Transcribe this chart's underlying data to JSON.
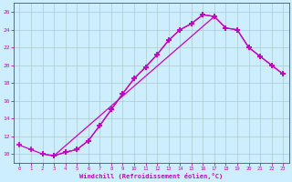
{
  "bg_color": "#cceeff",
  "line_color": "#cc00cc",
  "grid_color": "#aacccc",
  "marker": "+",
  "markersize": 4,
  "markeredgewidth": 1.2,
  "linewidth": 0.9,
  "xlim": [
    -0.5,
    23.5
  ],
  "ylim": [
    9.0,
    27.0
  ],
  "xticks": [
    0,
    1,
    2,
    3,
    4,
    5,
    6,
    7,
    8,
    9,
    10,
    11,
    12,
    13,
    14,
    15,
    16,
    17,
    18,
    19,
    20,
    21,
    22,
    23
  ],
  "yticks": [
    10,
    12,
    14,
    16,
    18,
    20,
    22,
    24,
    26
  ],
  "xlabel": "Windchill (Refroidissement éolien,°C)",
  "curve1_x": [
    0,
    1,
    2,
    3,
    4,
    5,
    6,
    7,
    8,
    9,
    10,
    11,
    12,
    13,
    14,
    15,
    16,
    17
  ],
  "curve1_y": [
    11.0,
    10.5,
    10.0,
    9.8,
    10.2,
    10.5,
    11.5,
    13.2,
    15.0,
    16.8,
    18.5,
    19.8,
    21.2,
    22.8,
    24.0,
    24.7,
    25.7,
    25.5
  ],
  "curve2_x": [
    3,
    4,
    5,
    6,
    7,
    8,
    9,
    10,
    11,
    12,
    13,
    14,
    15,
    16,
    17,
    18,
    19,
    20,
    21,
    22,
    23
  ],
  "curve2_y": [
    9.8,
    10.2,
    10.5,
    11.5,
    13.2,
    15.0,
    16.8,
    18.5,
    19.8,
    21.2,
    22.8,
    24.0,
    24.7,
    25.7,
    25.5,
    24.2,
    24.0,
    22.0,
    21.0,
    20.0,
    19.0
  ],
  "curve3_x": [
    2,
    3,
    17,
    18,
    19,
    20,
    21,
    22,
    23
  ],
  "curve3_y": [
    10.0,
    9.8,
    25.5,
    24.2,
    24.0,
    22.0,
    21.0,
    20.0,
    19.0
  ]
}
